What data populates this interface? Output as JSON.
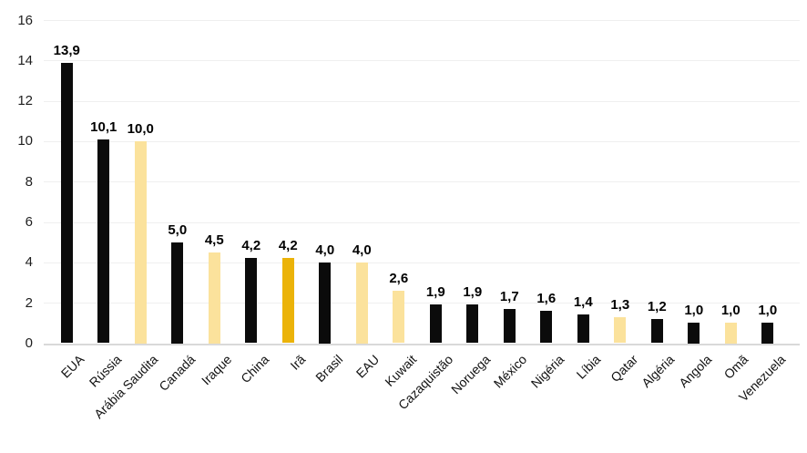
{
  "chart_data": {
    "type": "bar",
    "title": "",
    "xlabel": "",
    "ylabel": "",
    "categories": [
      "EUA",
      "Rússia",
      "Arábia Saudita",
      "Canadá",
      "Iraque",
      "China",
      "Irã",
      "Brasil",
      "EAU",
      "Kuwait",
      "Cazaquistão",
      "Noruega",
      "México",
      "Nigéria",
      "Líbia",
      "Qatar",
      "Algéria",
      "Angola",
      "Omã",
      "Venezuela"
    ],
    "values": [
      13.9,
      10.1,
      10.0,
      5.0,
      4.5,
      4.2,
      4.2,
      4.0,
      4.0,
      2.6,
      1.9,
      1.9,
      1.7,
      1.6,
      1.4,
      1.3,
      1.2,
      1.0,
      1.0,
      1.0
    ],
    "value_labels": [
      "13,9",
      "10,1",
      "10,0",
      "5,0",
      "4,5",
      "4,2",
      "4,2",
      "4,0",
      "4,0",
      "2,6",
      "1,9",
      "1,9",
      "1,7",
      "1,6",
      "1,4",
      "1,3",
      "1,2",
      "1,0",
      "1,0",
      "1,0"
    ],
    "bar_color_keys": [
      "default",
      "default",
      "pale",
      "default",
      "pale",
      "default",
      "gold",
      "default",
      "pale",
      "pale",
      "default",
      "default",
      "default",
      "default",
      "default",
      "pale",
      "default",
      "default",
      "pale",
      "default"
    ],
    "bar_palette": {
      "default": "#0b0b0b",
      "pale": "#fbe29c",
      "gold": "#ebb309"
    },
    "ylim": [
      0,
      16
    ],
    "yticks": [
      0,
      2,
      4,
      6,
      8,
      10,
      12,
      14,
      16
    ],
    "ytick_labels": [
      "0",
      "2",
      "4",
      "6",
      "8",
      "10",
      "12",
      "14",
      "16"
    ],
    "grid": true,
    "legend": false,
    "colors": {
      "grid": "#efefef",
      "baseline": "#d9d9d9",
      "axis_text": "#1e1e1e",
      "value_text": "#000000",
      "background": "#ffffff"
    }
  }
}
